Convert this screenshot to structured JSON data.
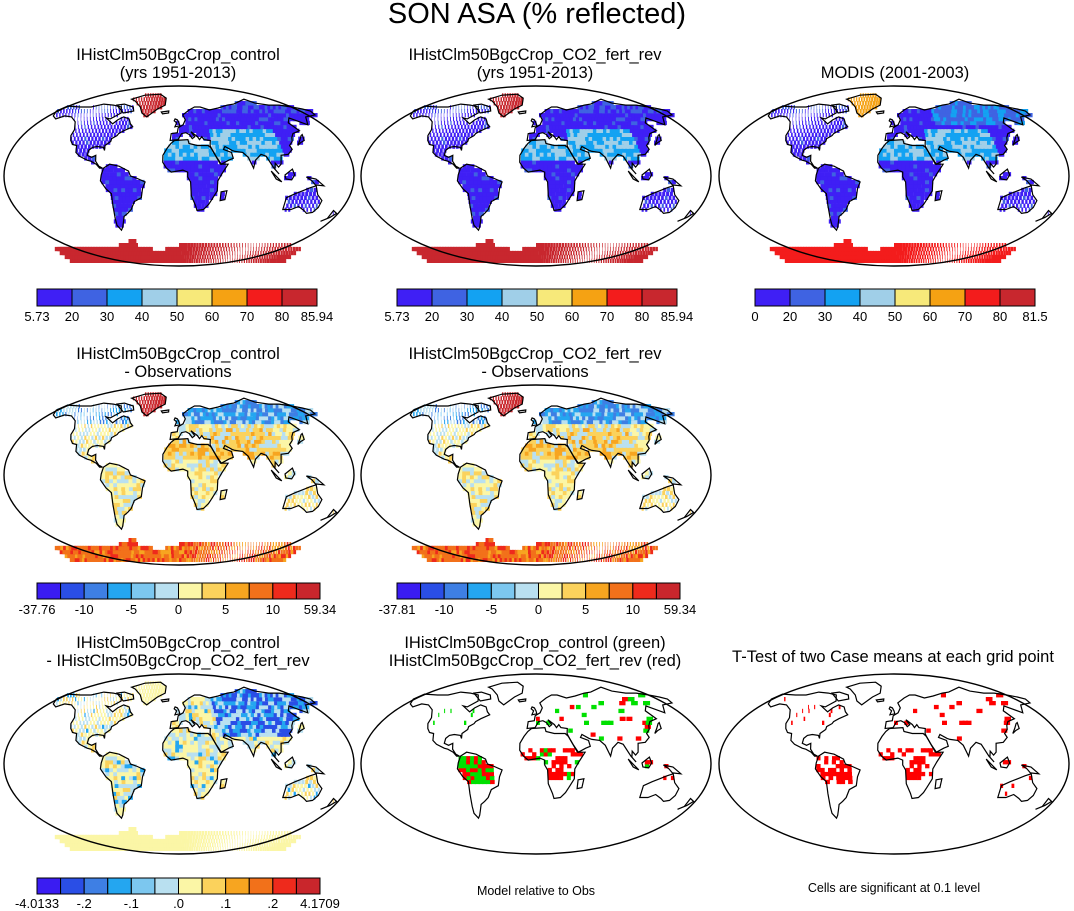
{
  "title": "SON ASA (% reflected)",
  "panels": [
    {
      "title1": "IHistClm50BgcCrop_control",
      "title2": "(yrs 1951-2013)",
      "style": "abs"
    },
    {
      "title1": "IHistClm50BgcCrop_CO2_fert_rev",
      "title2": "(yrs 1951-2013)",
      "style": "abs"
    },
    {
      "title1": "MODIS (2001-2003)",
      "title2": "",
      "style": "obs"
    },
    {
      "title1": "IHistClm50BgcCrop_control",
      "title2": "- Observations",
      "style": "bias"
    },
    {
      "title1": "IHistClm50BgcCrop_CO2_fert_rev",
      "title2": "- Observations",
      "style": "bias"
    },
    {
      "title1": "IHistClm50BgcCrop_control",
      "title2": "- IHistClm50BgcCrop_CO2_fert_rev",
      "style": "diff"
    },
    {
      "title1": "IHistClm50BgcCrop_control (green)",
      "title2": "IHistClm50BgcCrop_CO2_fert_rev (red)",
      "style": "rel"
    },
    {
      "title1": "T-Test of two Case means at each grid point",
      "title2": "",
      "style": "ttest"
    }
  ],
  "colorbars": [
    {
      "colors": [
        "#3f1ff5",
        "#3f63e2",
        "#13a2f2",
        "#a0cfe8",
        "#f7e97a",
        "#f5a213",
        "#f31c1c",
        "#c8272e"
      ],
      "labels": [
        "5.73",
        "20",
        "30",
        "40",
        "50",
        "60",
        "70",
        "80",
        "85.94"
      ]
    },
    {
      "colors": [
        "#3f1ff5",
        "#3f63e2",
        "#13a2f2",
        "#a0cfe8",
        "#f7e97a",
        "#f5a213",
        "#f31c1c",
        "#c8272e"
      ],
      "labels": [
        "5.73",
        "20",
        "30",
        "40",
        "50",
        "60",
        "70",
        "80",
        "85.94"
      ]
    },
    {
      "colors": [
        "#3f1ff5",
        "#3f63e2",
        "#13a2f2",
        "#a0cfe8",
        "#f7e97a",
        "#f5a213",
        "#f31c1c",
        "#c8272e"
      ],
      "labels": [
        "0",
        "20",
        "30",
        "40",
        "50",
        "60",
        "70",
        "80",
        "81.5"
      ]
    },
    {
      "colors": [
        "#3a1cf2",
        "#2a4ee6",
        "#3e7fe4",
        "#24a6f0",
        "#7cc7ef",
        "#b9e0f0",
        "#fbf6a6",
        "#fbd25c",
        "#f7a520",
        "#f2711a",
        "#ee2a1c",
        "#c9262c"
      ],
      "labels": [
        "-37.76",
        "",
        "-10",
        "",
        "-5",
        "",
        "0",
        "",
        "5",
        "",
        "10",
        "",
        "59.34"
      ]
    },
    {
      "colors": [
        "#3a1cf2",
        "#2a4ee6",
        "#3e7fe4",
        "#24a6f0",
        "#7cc7ef",
        "#b9e0f0",
        "#fbf6a6",
        "#fbd25c",
        "#f7a520",
        "#f2711a",
        "#ee2a1c",
        "#c9262c"
      ],
      "labels": [
        "-37.81",
        "",
        "-10",
        "",
        "-5",
        "",
        "0",
        "",
        "5",
        "",
        "10",
        "",
        "59.34"
      ]
    },
    {
      "colors": [
        "#3a1cf2",
        "#2a4ee6",
        "#3e7fe4",
        "#24a6f0",
        "#7cc7ef",
        "#b9e0f0",
        "#fbf6a6",
        "#fbd25c",
        "#f7a520",
        "#f2711a",
        "#ee2a1c",
        "#c9262c"
      ],
      "labels": [
        "-4.0133",
        "",
        "-.2",
        "",
        "-.1",
        "",
        ".0",
        "",
        ".1",
        "",
        ".2",
        "",
        "4.1709"
      ]
    }
  ],
  "footnotes": {
    "rel": "Model relative to Obs",
    "ttest": "Cells are significant at 0.1 level"
  }
}
